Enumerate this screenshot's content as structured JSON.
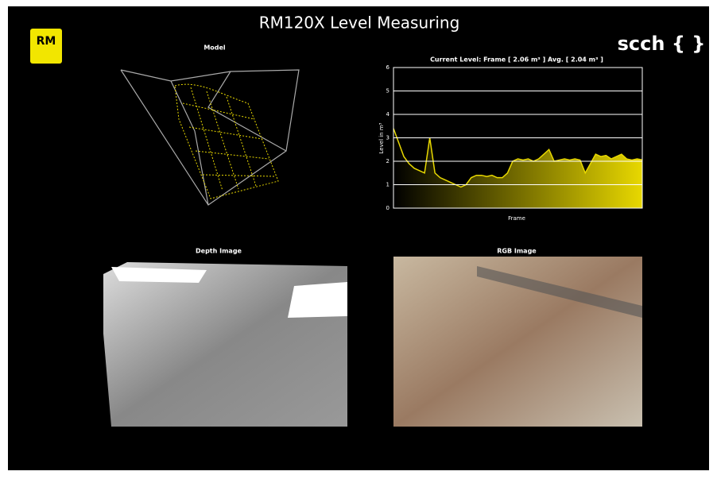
{
  "header": {
    "title": "RM120X Level Measuring",
    "logo_left": "RM",
    "logo_right": "scch { }"
  },
  "panels": {
    "model": "Model",
    "depth": "Depth Image",
    "rgb": "RGB Image"
  },
  "chart_data": {
    "type": "line",
    "title": "Current Level:  Frame  [ 2.06 m³ ]  Avg.  [ 2.04 m³ ]",
    "y_label": "Level in m³",
    "x_label": "Frame",
    "color": "#e8d800",
    "values": [
      3.4,
      2.8,
      2.2,
      1.9,
      1.7,
      1.6,
      1.5,
      3.0,
      1.5,
      1.3,
      1.2,
      1.1,
      1.0,
      0.9,
      1.0,
      1.3,
      1.4,
      1.4,
      1.35,
      1.4,
      1.3,
      1.3,
      1.5,
      2.0,
      2.1,
      2.05,
      2.1,
      2.0,
      2.1,
      2.3,
      2.5,
      2.0,
      2.05,
      2.1,
      2.05,
      2.1,
      2.05,
      1.5,
      1.9,
      2.3,
      2.2,
      2.25,
      2.1,
      2.2,
      2.3,
      2.1,
      2.05,
      2.1,
      2.06
    ],
    "ylim": [
      0,
      6
    ],
    "yticks": [
      0,
      1,
      2,
      3,
      4,
      5,
      6
    ],
    "grid": true
  }
}
